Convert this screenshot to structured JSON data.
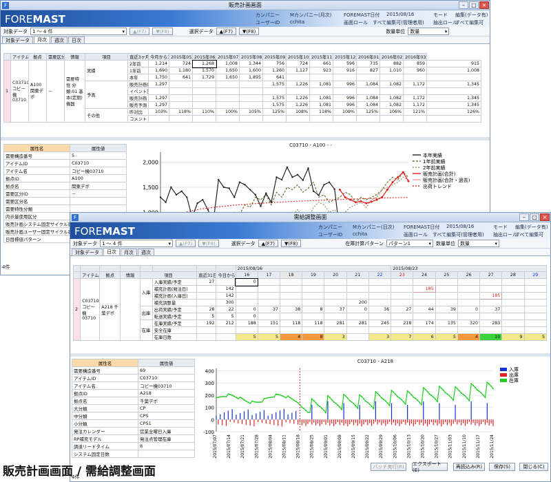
{
  "back_window": {
    "title": "販売計画画面",
    "logo_part1": "FORE",
    "logo_part2": "MAST",
    "header": {
      "company_label": "カンパニー",
      "company_value": "Mカンパニー(月次)",
      "date_label": "FOREMAST日付",
      "date_value": "2015/08/16",
      "mode_label": "モード",
      "mode_value": "編集(データ有)",
      "user_label": "ユーザーID",
      "user_value": "cchita",
      "role_label": "画面ロール",
      "role_value": "すべて編集可(管理者用)",
      "extract_label": "抽出ロール",
      "extract_value": "すべて編集可"
    },
    "toolbar": {
      "target_label": "対象データ",
      "target_value": "1 ～ 4 件",
      "prev_button": "▲(F7)",
      "next_button": "▼(F8)",
      "select_label": "選択データ",
      "sel_prev": "▲(F7)",
      "sel_next": "▼(F8)",
      "qty_label": "数量単位",
      "qty_value": "数量"
    },
    "tabs": [
      "対象データ",
      "月次",
      "週次",
      "日次"
    ],
    "grid": {
      "headers": [
        "アイテム",
        "拠点",
        "需要区分",
        "情報",
        "項目",
        "直近3ヶ月",
        "今月から3ヶ月間"
      ],
      "months": [
        "2015年05月",
        "2015年06月",
        "2015年07月",
        "2015年08月",
        "2015年09月",
        "2015年10月",
        "2015年11月",
        "2015年12月",
        "2016年01月",
        "2016年02月",
        "2016年03月"
      ],
      "row_no": "1",
      "item": "C03710 コピー機 03710",
      "site": "A100 関東デポ",
      "demand": "－",
      "info": "需要特性 分類:01 基本(定期) 機器",
      "groups": [
        "実績",
        "予測",
        "その他"
      ],
      "rows": [
        {
          "label": "2年前",
          "a": "1,214",
          "b": "724",
          "v": [
            "1,268",
            "1,008",
            "1,344",
            "756",
            "724",
            "661",
            "596",
            "735",
            "882",
            "859",
            "915"
          ]
        },
        {
          "label": "1年前",
          "a": "1,690",
          "b": "1,180",
          "v": [
            "1,570",
            "1,650",
            "1,600",
            "1,260",
            "1,127",
            "923",
            "916",
            "827",
            "1,010",
            "960",
            "1,008"
          ]
        },
        {
          "label": "本年",
          "a": "1,750",
          "b": "641",
          "v": [
            "1,729",
            "1,650",
            "1,895",
            "641",
            "",
            "",
            "",
            "",
            "",
            "",
            ""
          ]
        },
        {
          "label": "販売計画(合計)",
          "a": "1,297",
          "b": "",
          "v": [
            "",
            "",
            "",
            "1,575",
            "1,226",
            "1,081",
            "996",
            "1,084",
            "1,082",
            "1,172",
            "1,345"
          ]
        },
        {
          "label": "イベント調整",
          "a": "",
          "b": "",
          "v": [
            "",
            "",
            "",
            "",
            "",
            "",
            "",
            "",
            "",
            "",
            ""
          ]
        },
        {
          "label": "販売計画",
          "a": "1,297",
          "b": "",
          "v": [
            "",
            "",
            "",
            "1,575",
            "1,226",
            "1,081",
            "996",
            "1,084",
            "1,082",
            "1,172",
            "1,345"
          ]
        },
        {
          "label": "販売予測",
          "a": "1,297",
          "b": "",
          "v": [
            "",
            "",
            "",
            "1,575",
            "1,226",
            "1,081",
            "996",
            "1,084",
            "1,082",
            "1,172",
            "1,345"
          ]
        },
        {
          "label": "昨対比",
          "a": "103%",
          "b": "118%",
          "v": [
            "110%",
            "100%",
            "105%",
            "125%",
            "108%",
            "118%",
            "109%",
            "125%",
            "106%",
            "121%",
            "126%"
          ]
        },
        {
          "label": "コメント",
          "a": "",
          "b": "",
          "v": [
            "",
            "",
            "",
            "",
            "",
            "",
            "",
            "",
            "",
            "",
            ""
          ]
        }
      ]
    },
    "props": {
      "col_name": "属性名",
      "col_value": "属性値",
      "rows": [
        {
          "k": "需要構造番号",
          "v": "5"
        },
        {
          "k": "アイテムID",
          "v": "C03710"
        },
        {
          "k": "アイテム名",
          "v": "コピー機03710"
        },
        {
          "k": "拠点ID",
          "v": "A100"
        },
        {
          "k": "拠点名",
          "v": "関東デポ"
        },
        {
          "k": "需要区分ID",
          "v": "－"
        },
        {
          "k": "需要区分名",
          "v": ""
        },
        {
          "k": "需要特性分類",
          "v": ""
        },
        {
          "k": "内示量使用区分",
          "v": ""
        },
        {
          "k": "販売計画システム固定サイクル番号",
          "v": ""
        },
        {
          "k": "販売計画ユーザー固定サイクル番号",
          "v": ""
        },
        {
          "k": "日目標値パターン",
          "v": ""
        }
      ],
      "count": "4件"
    },
    "chart": {
      "title": "C03710 - A100 - -",
      "legend": [
        "本年実績",
        "1年前実績",
        "2年前実績",
        "販売計画(合計)",
        "販売計画(合計・過去)",
        "出荷トレンド"
      ]
    }
  },
  "front_window": {
    "title": "需給調整画面",
    "logo_part1": "FORE",
    "logo_part2": "MAST",
    "header": {
      "company_label": "カンパニー",
      "company_value": "Mカンパニー(日次)",
      "date_label": "FOREMAST日付",
      "date_value": "2015/08/16",
      "mode_label": "モード",
      "mode_value": "編集(データ有)",
      "user_label": "ユーザーID",
      "user_value": "cchita",
      "role_label": "画面ロール",
      "role_value": "すべて編集可(管理者用)",
      "extract_label": "抽出ロール",
      "extract_value": "すべて編集可"
    },
    "toolbar": {
      "target_label": "対象データ",
      "target_value": "1 ～ 4 件",
      "prev_button": "▲(F7)",
      "next_button": "▼(F8)",
      "select_label": "選択データ",
      "sel_prev": "▲(F7)",
      "sel_next": "▼(F8)",
      "pattern_label": "在庫計算パターン",
      "pattern_value": "パターン1",
      "qty_label": "数量単位",
      "qty_value": "数量"
    },
    "tabs": [
      "対象データ",
      "日次",
      "月次",
      "週次"
    ],
    "grid": {
      "headers": [
        "アイテム",
        "拠点",
        "情報",
        "項目",
        "直近31日間",
        "今日から31日間"
      ],
      "week1": "2015/08/16",
      "week2": "2015/08/23",
      "days": [
        "16",
        "17",
        "18",
        "19",
        "20",
        "21",
        "22",
        "23",
        "24",
        "25",
        "26",
        "27",
        "28",
        "29"
      ],
      "row_no": "2",
      "item": "C03710 コピー機 03710",
      "site": "A218 千葉デポ",
      "groups": [
        "入庫",
        "出庫",
        "在庫"
      ],
      "rows": [
        {
          "label": "入庫実績/予定",
          "a": "27",
          "b": "",
          "v": [
            "0",
            "",
            "",
            "",
            "",
            "",
            "",
            "",
            "",
            "",
            "",
            "",
            "",
            ""
          ]
        },
        {
          "label": "補充計画(発注日)",
          "a": "",
          "b": "142",
          "v": [
            "",
            "",
            "",
            "",
            "",
            "",
            "",
            "",
            "185",
            "",
            "",
            "",
            "",
            ""
          ]
        },
        {
          "label": "補充計画(入庫日)",
          "a": "",
          "b": "142",
          "v": [
            "",
            "",
            "",
            "",
            "",
            "",
            "",
            "",
            "",
            "",
            "",
            "185",
            "",
            ""
          ]
        },
        {
          "label": "補充調整量",
          "a": "",
          "b": "300",
          "v": [
            "",
            "",
            "",
            "",
            "",
            "200",
            "",
            "",
            "",
            "",
            "",
            "",
            "",
            ""
          ]
        },
        {
          "label": "出荷実績/予定",
          "a": "28",
          "b": "22",
          "v": [
            "0",
            "37",
            "38",
            "8",
            "37",
            "0",
            "36",
            "27",
            "44",
            "39",
            "0",
            "37",
            "",
            ""
          ]
        },
        {
          "label": "転送実績/予定",
          "a": "5",
          "b": "5",
          "v": [
            "0",
            "",
            "",
            "",
            "",
            "",
            "",
            "",
            "",
            "",
            "",
            "",
            "",
            ""
          ]
        },
        {
          "label": "在庫実績/予定",
          "a": "192",
          "b": "212",
          "v": [
            "188",
            "151",
            "118",
            "118",
            "281",
            "281",
            "245",
            "218",
            "174",
            "135",
            "320",
            "283",
            "",
            ""
          ]
        },
        {
          "label": "安全在庫",
          "a": "",
          "b": "",
          "v": [
            "",
            "",
            "",
            "",
            "",
            "",
            "",
            "",
            "",
            "",
            "",
            "",
            "",
            ""
          ]
        },
        {
          "label": "在庫日数",
          "a": "",
          "b": "",
          "v": [
            "5",
            "5",
            "4",
            "8",
            "3",
            "",
            "3",
            "7",
            "6",
            "5",
            "4",
            "10",
            "9",
            "5"
          ]
        }
      ]
    },
    "props": {
      "col_name": "属性名",
      "col_value": "属性値",
      "rows": [
        {
          "k": "需要構造番号",
          "v": "69"
        },
        {
          "k": "アイテムID",
          "v": "C03710"
        },
        {
          "k": "アイテム名",
          "v": "コピー機03710"
        },
        {
          "k": "拠点ID",
          "v": "A218"
        },
        {
          "k": "拠点名",
          "v": "千葉デポ"
        },
        {
          "k": "大分類",
          "v": "CP"
        },
        {
          "k": "中分類",
          "v": "CPS"
        },
        {
          "k": "小分類",
          "v": "CPS1"
        },
        {
          "k": "発注カレンダー",
          "v": "営業全曜日入庫"
        },
        {
          "k": "RP補充モデル",
          "v": "発注点管理在庫"
        },
        {
          "k": "調達リードタイム",
          "v": "8"
        },
        {
          "k": "システム固定日数",
          "v": ""
        }
      ],
      "count": "4件"
    },
    "chart": {
      "title": "C03710 - A218",
      "legend": [
        "入庫",
        "出庫",
        "在庫"
      ],
      "y_ticks": [
        "400",
        "300",
        "200",
        "100",
        "0",
        "-100"
      ],
      "x_ticks": [
        "2015/07/07",
        "2015/07/14",
        "2015/07/21",
        "2015/07/28",
        "2015/08/04",
        "2015/08/11",
        "2015/08/18",
        "2015/08/25",
        "2015/09/01",
        "2015/09/08",
        "2015/09/15",
        "2015/09/22",
        "2015/09/29",
        "2015/10/06",
        "2015/10/13",
        "2015/10/20",
        "2015/10/27",
        "2015/11/03",
        "2015/11/10",
        "2015/11/17",
        "2015/11/24"
      ]
    },
    "footer": {
      "batch_button": "バッチ実行(R)",
      "export_button": "エクスポート(E)",
      "reload_button": "再読込み(R)",
      "save_button": "保存(S)",
      "close_button": "閉じる(C)"
    }
  },
  "caption": "販売計画画面 / 需給調整画面",
  "colors": {
    "accent": "#1f4f9c",
    "yellow": "#f3e98a",
    "green": "#b8e69e",
    "orange": "#fbd9a8",
    "in_bar": "#1030d0",
    "out_bar": "#e02020",
    "stock_line": "#22cc22"
  }
}
